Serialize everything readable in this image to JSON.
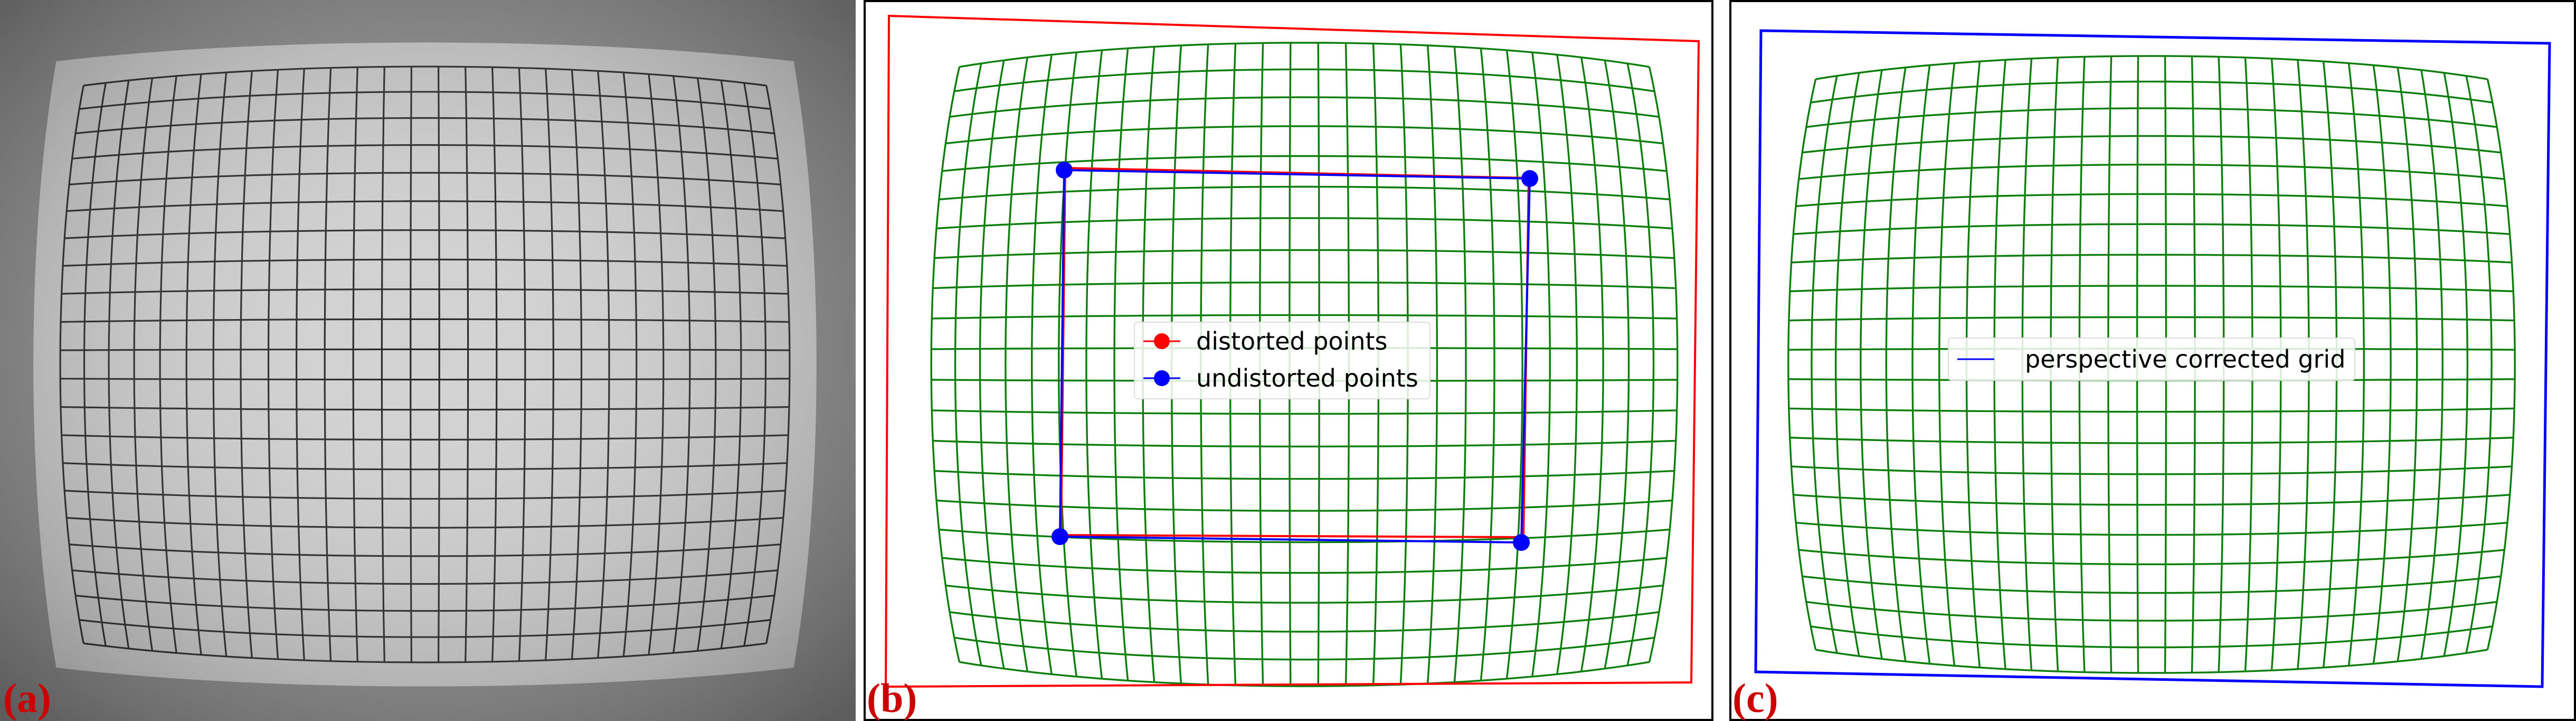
{
  "colors": {
    "grid": "#0a7d0a",
    "distorted": "#ff0000",
    "undistorted": "#0000ff",
    "label": "#cc0000",
    "photo_bg": "#8f8f8f",
    "photo_target": "#d2d2d2",
    "photo_lines": "#262626"
  },
  "grid_spec": {
    "columns": 27,
    "rows": 21
  },
  "panel_a": {
    "label": "(a)"
  },
  "panel_b": {
    "label": "(b)",
    "legend": {
      "distorted": "distorted points",
      "undistorted": "undistorted points"
    }
  },
  "panel_c": {
    "label": "(c)",
    "legend": {
      "corrected": "perspective corrected grid"
    }
  }
}
